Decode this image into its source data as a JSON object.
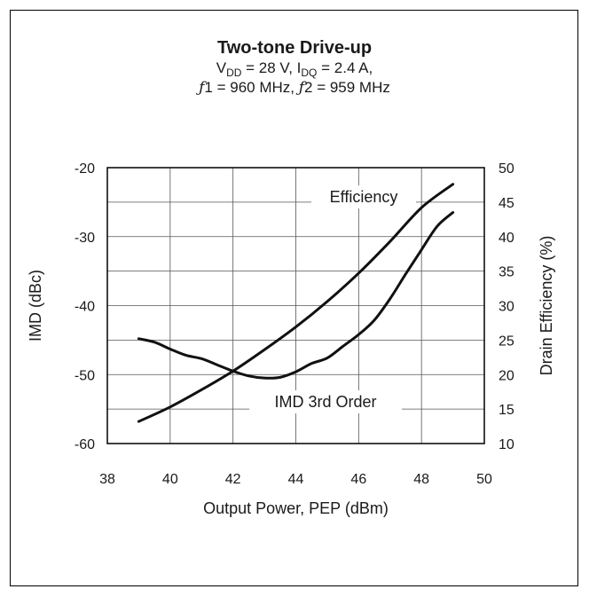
{
  "chart_data": {
    "type": "line",
    "title": "Two-tone Drive-up",
    "subtitle": {
      "vdd_symbol": "V",
      "vdd_sub": "DD",
      "vdd_value": " = 28 V, ",
      "idq_symbol": "I",
      "idq_sub": "DQ",
      "idq_value": " = 2.4 A,",
      "f1_symbol": "ƒ",
      "f1_text": "1 = 960 MHz, ",
      "f2_symbol": "ƒ",
      "f2_text": "2 = 959 MHz"
    },
    "xlabel": "Output Power, PEP (dBm)",
    "ylabel_left": "IMD (dBc)",
    "ylabel_right": "Drain Efficiency (%)",
    "xlim": [
      38,
      50
    ],
    "ylim_left": [
      -60,
      -20
    ],
    "ylim_right": [
      10,
      50
    ],
    "x_ticks": [
      "38",
      "40",
      "42",
      "44",
      "46",
      "48",
      "50"
    ],
    "y_left_ticks": [
      "-60",
      "-50",
      "-40",
      "-30",
      "-20"
    ],
    "y_right_ticks": [
      "10",
      "15",
      "20",
      "25",
      "30",
      "35",
      "40",
      "45",
      "50"
    ],
    "grid": true,
    "series": [
      {
        "name": "Efficiency",
        "axis": "right",
        "x": [
          39,
          40,
          41,
          42,
          43,
          44,
          45,
          46,
          47,
          48,
          49
        ],
        "y": [
          13.2,
          15.3,
          17.8,
          20.5,
          23.6,
          26.9,
          30.6,
          34.7,
          39.3,
          44.2,
          47.6
        ]
      },
      {
        "name": "IMD 3rd Order",
        "axis": "left",
        "x": [
          39,
          39.5,
          40,
          40.5,
          41,
          41.5,
          42,
          42.5,
          43,
          43.5,
          44,
          44.5,
          45,
          45.5,
          46,
          46.5,
          47,
          47.5,
          48,
          48.5,
          49
        ],
        "y": [
          -44.8,
          -45.3,
          -46.3,
          -47.2,
          -47.7,
          -48.6,
          -49.5,
          -50.2,
          -50.5,
          -50.4,
          -49.6,
          -48.4,
          -47.6,
          -45.9,
          -44.2,
          -42.1,
          -39.0,
          -35.4,
          -31.9,
          -28.5,
          -26.5
        ]
      }
    ]
  }
}
